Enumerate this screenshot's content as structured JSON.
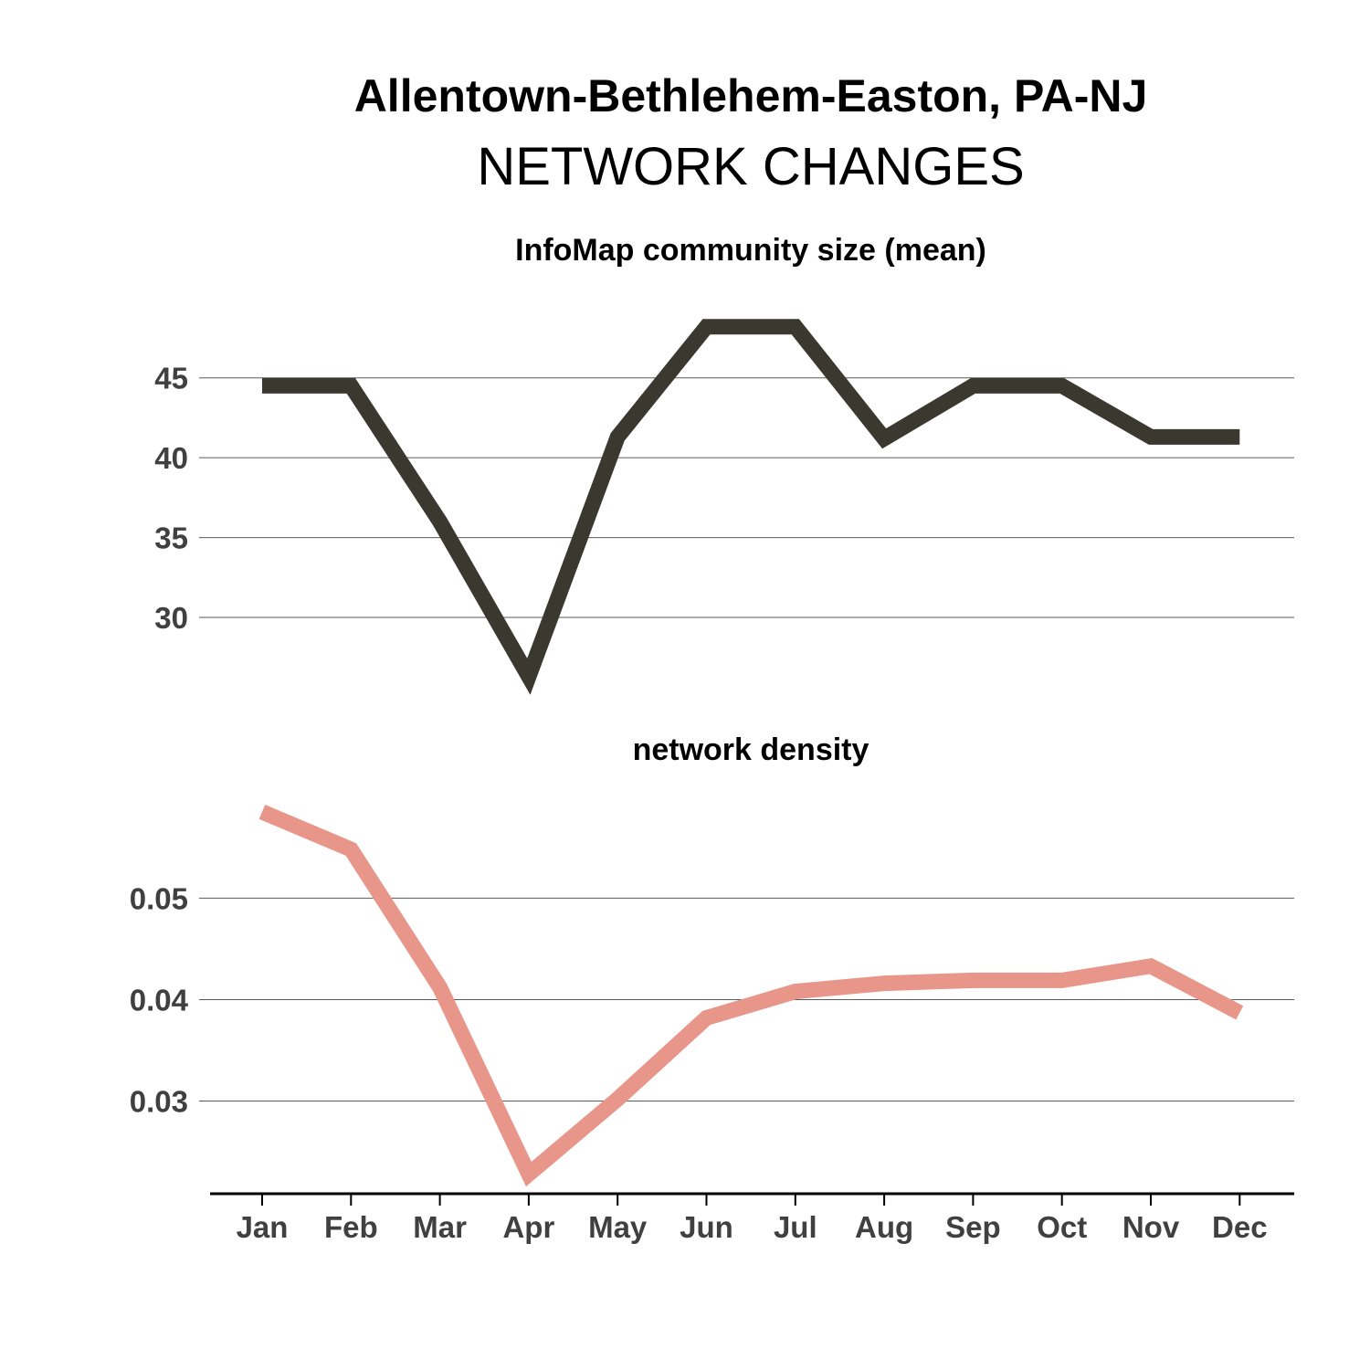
{
  "title": "Allentown-Bethlehem-Easton, PA-NJ",
  "subtitle": "NETWORK CHANGES",
  "colors": {
    "series_top": "#3b3830",
    "series_bottom": "#e8968a",
    "axis_text": "#404040",
    "grid": "#5a5a5a"
  },
  "chart_data": [
    {
      "type": "line",
      "title": "InfoMap community size (mean)",
      "categories": [
        "Jan",
        "Feb",
        "Mar",
        "Apr",
        "May",
        "Jun",
        "Jul",
        "Aug",
        "Sep",
        "Oct",
        "Nov",
        "Dec"
      ],
      "values": [
        44.5,
        44.5,
        36,
        26.3,
        41.3,
        48.2,
        48.2,
        41.2,
        44.5,
        44.5,
        41.3,
        41.3
      ],
      "yticks": [
        30,
        35,
        40,
        45
      ],
      "ylim": [
        25.2,
        51.5
      ],
      "grid": true
    },
    {
      "type": "line",
      "title": "network density",
      "categories": [
        "Jan",
        "Feb",
        "Mar",
        "Apr",
        "May",
        "Jun",
        "Jul",
        "Aug",
        "Sep",
        "Oct",
        "Nov",
        "Dec"
      ],
      "values": [
        0.0585,
        0.0548,
        0.0412,
        0.0228,
        0.0302,
        0.0382,
        0.0408,
        0.0416,
        0.0419,
        0.0419,
        0.0433,
        0.0387
      ],
      "yticks": [
        0.03,
        0.04,
        0.05
      ],
      "yticklabels": [
        "0.03",
        "0.04",
        "0.05"
      ],
      "ylim": [
        0.0215,
        0.062
      ],
      "grid": true
    }
  ]
}
